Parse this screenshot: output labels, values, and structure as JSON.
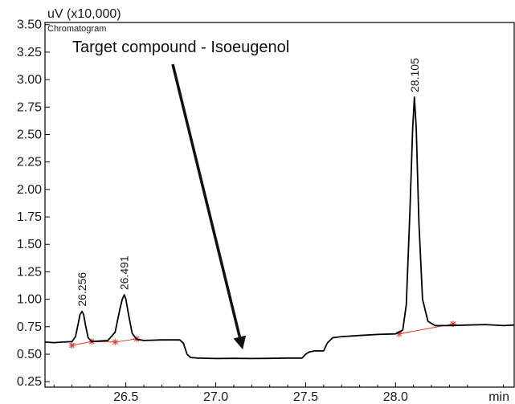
{
  "chart_data": {
    "type": "line",
    "title": "Chromatogram",
    "ylabel": "uV (x10,000)",
    "xlabel": "min",
    "xlim": [
      26.05,
      28.66
    ],
    "ylim": [
      0.2,
      3.52
    ],
    "x_ticks": [
      "26.5",
      "27.0",
      "27.5",
      "28.0"
    ],
    "x_tick_values": [
      26.5,
      27.0,
      27.5,
      28.0
    ],
    "y_ticks": [
      "0.25",
      "0.50",
      "0.75",
      "1.00",
      "1.25",
      "1.50",
      "1.75",
      "2.00",
      "2.25",
      "2.50",
      "2.75",
      "3.00",
      "3.25",
      "3.50"
    ],
    "y_tick_values": [
      0.25,
      0.5,
      0.75,
      1.0,
      1.25,
      1.5,
      1.75,
      2.0,
      2.25,
      2.5,
      2.75,
      3.0,
      3.25,
      3.5
    ],
    "grid": false,
    "annotation": "Target compound - Isoeugenol",
    "annotation_target": {
      "x": 27.15,
      "y": 0.47
    },
    "peak_labels": [
      {
        "text": "26.256",
        "x": 26.256,
        "y": 0.89
      },
      {
        "text": "26.491",
        "x": 26.491,
        "y": 1.04
      },
      {
        "text": "28.105",
        "x": 28.105,
        "y": 2.84
      }
    ],
    "series": [
      {
        "color": "#000000",
        "x": [
          26.05,
          26.1,
          26.15,
          26.2,
          26.22,
          26.235,
          26.245,
          26.256,
          26.265,
          26.275,
          26.29,
          26.31,
          26.35,
          26.4,
          26.44,
          26.465,
          26.48,
          26.491,
          26.5,
          26.515,
          26.535,
          26.56,
          26.6,
          26.7,
          26.8,
          26.82,
          26.84,
          26.86,
          26.9,
          27.0,
          27.1,
          27.2,
          27.3,
          27.4,
          27.48,
          27.5,
          27.52,
          27.55,
          27.6,
          27.62,
          27.65,
          27.7,
          27.8,
          27.9,
          28.0,
          28.04,
          28.06,
          28.08,
          28.095,
          28.105,
          28.115,
          28.13,
          28.15,
          28.18,
          28.22,
          28.3,
          28.4,
          28.5,
          28.6,
          28.66
        ],
        "y": [
          0.61,
          0.605,
          0.61,
          0.615,
          0.66,
          0.78,
          0.86,
          0.89,
          0.86,
          0.77,
          0.65,
          0.615,
          0.62,
          0.625,
          0.7,
          0.9,
          1.0,
          1.04,
          1.0,
          0.86,
          0.69,
          0.635,
          0.625,
          0.63,
          0.63,
          0.6,
          0.5,
          0.47,
          0.465,
          0.46,
          0.462,
          0.46,
          0.462,
          0.465,
          0.465,
          0.5,
          0.52,
          0.53,
          0.53,
          0.6,
          0.65,
          0.66,
          0.67,
          0.68,
          0.685,
          0.72,
          0.95,
          1.8,
          2.55,
          2.84,
          2.55,
          1.7,
          1.0,
          0.8,
          0.76,
          0.76,
          0.765,
          0.77,
          0.76,
          0.765
        ]
      }
    ],
    "baselines": [
      {
        "color": "#e0332a",
        "x": [
          26.2,
          26.31,
          26.44,
          26.56
        ],
        "y": [
          0.58,
          0.615,
          0.61,
          0.64
        ]
      },
      {
        "color": "#e0332a",
        "x": [
          28.02,
          28.32
        ],
        "y": [
          0.685,
          0.775
        ]
      }
    ]
  }
}
